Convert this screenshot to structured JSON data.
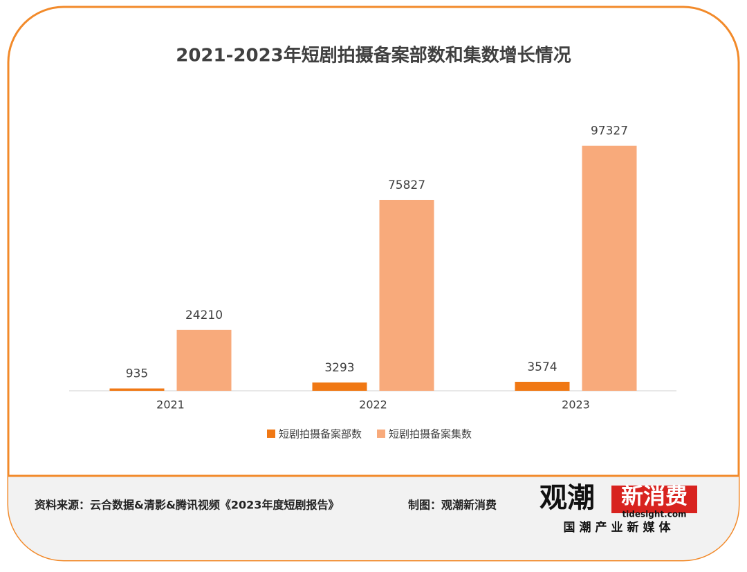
{
  "chart_data": {
    "type": "bar",
    "title": "2021-2023年短剧拍摄备案部数和集数增长情况",
    "categories": [
      "2021",
      "2022",
      "2023"
    ],
    "series": [
      {
        "name": "短剧拍摄备案部数",
        "color": "#f07814",
        "values": [
          935,
          3293,
          3574
        ]
      },
      {
        "name": "短剧拍摄备案集数",
        "color": "#f8aa7b",
        "values": [
          24210,
          75827,
          97327
        ]
      }
    ],
    "ylim": [
      0,
      100000
    ],
    "legend": "bottom"
  },
  "footer": {
    "source": "资料来源：云合数据&清影&腾讯视频《2023年度短剧报告》",
    "credit": "制图：观潮新消费"
  },
  "logo": {
    "name_black": "观潮",
    "name_red": "新消费",
    "site": "tidesight.com",
    "slogan": "国潮产业新媒体"
  }
}
